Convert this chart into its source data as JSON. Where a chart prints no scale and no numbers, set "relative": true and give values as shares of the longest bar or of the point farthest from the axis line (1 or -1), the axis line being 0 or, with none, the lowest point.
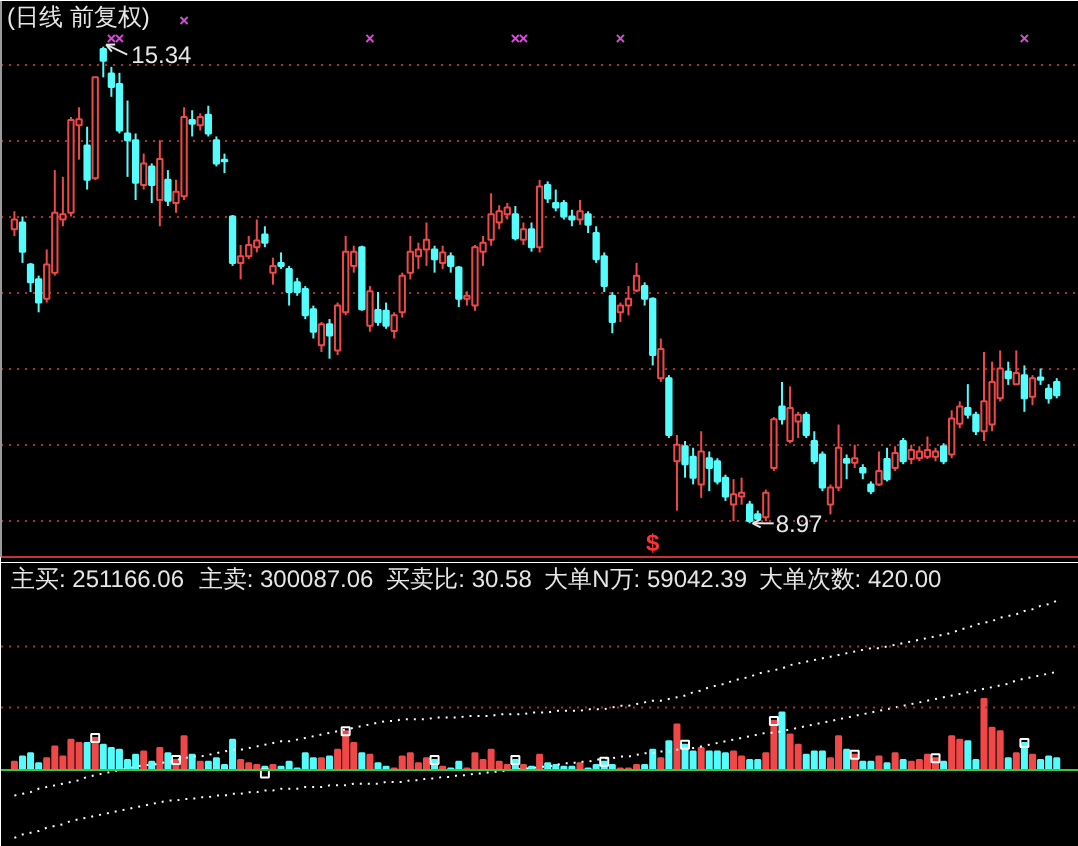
{
  "chart_data": [
    {
      "type": "candlestick",
      "title": "(日线 前复权)",
      "categories": [
        null,
        null,
        null,
        null,
        null,
        null,
        null,
        null,
        null,
        null,
        null,
        null,
        null,
        null,
        null,
        null,
        null,
        null,
        null,
        null,
        null,
        null,
        null,
        null,
        null,
        null,
        null,
        null,
        null,
        null,
        null,
        null,
        null,
        null,
        null,
        null,
        null,
        null,
        null,
        null,
        null,
        null,
        null,
        null,
        null,
        null,
        null,
        null,
        null,
        null,
        null,
        null,
        null,
        null,
        null,
        null,
        null,
        null,
        null,
        null,
        null,
        null,
        null,
        null,
        null,
        null,
        null,
        null,
        null,
        null,
        null,
        null,
        null,
        null,
        null,
        null,
        null,
        null,
        null,
        "$",
        null,
        null,
        null,
        null,
        null,
        null,
        null,
        null,
        null,
        null,
        null,
        null,
        null,
        null,
        null,
        null,
        null,
        null,
        null,
        null,
        null,
        null,
        null,
        null,
        null,
        null,
        null,
        null,
        null,
        null,
        null,
        null,
        null,
        null,
        null,
        null,
        null,
        null,
        null,
        null,
        null,
        null,
        null,
        null,
        null,
        null,
        null,
        null,
        null,
        null
      ],
      "ohlc": [
        [
          12.9,
          13.14,
          12.81,
          13.03
        ],
        [
          12.99,
          13.07,
          12.45,
          12.6
        ],
        [
          12.43,
          12.45,
          12.06,
          12.19
        ],
        [
          12.23,
          12.28,
          11.79,
          11.92
        ],
        [
          11.97,
          12.63,
          11.92,
          12.43
        ],
        [
          12.32,
          13.69,
          12.28,
          13.12
        ],
        [
          13.03,
          13.6,
          12.94,
          13.1
        ],
        [
          13.12,
          14.4,
          13.07,
          14.36
        ],
        [
          14.29,
          14.53,
          13.83,
          14.37
        ],
        [
          14.02,
          14.27,
          13.43,
          13.56
        ],
        [
          13.58,
          14.93,
          13.56,
          14.93
        ],
        [
          15.31,
          15.34,
          14.93,
          15.15
        ],
        [
          14.98,
          15.07,
          14.67,
          14.8
        ],
        [
          14.84,
          14.99,
          14.18,
          14.22
        ],
        [
          14.18,
          14.62,
          13.6,
          14.09
        ],
        [
          14.09,
          14.18,
          13.29,
          13.52
        ],
        [
          13.49,
          13.91,
          13.43,
          13.78
        ],
        [
          13.74,
          13.78,
          13.25,
          13.49
        ],
        [
          13.29,
          14.09,
          12.94,
          13.84
        ],
        [
          13.56,
          13.69,
          13.21,
          13.28
        ],
        [
          13.25,
          13.56,
          13.12,
          13.4
        ],
        [
          13.34,
          14.53,
          13.29,
          14.4
        ],
        [
          14.36,
          14.49,
          14.14,
          14.31
        ],
        [
          14.29,
          14.45,
          14.22,
          14.4
        ],
        [
          14.43,
          14.55,
          14.14,
          14.18
        ],
        [
          14.09,
          14.14,
          13.74,
          13.78
        ],
        [
          13.83,
          13.91,
          13.65,
          13.81
        ],
        [
          13.07,
          13.09,
          12.41,
          12.45
        ],
        [
          12.45,
          12.69,
          12.23,
          12.54
        ],
        [
          12.54,
          12.81,
          12.5,
          12.69
        ],
        [
          12.66,
          13.03,
          12.59,
          12.75
        ],
        [
          12.83,
          12.94,
          12.66,
          12.72
        ],
        [
          12.32,
          12.52,
          12.16,
          12.41
        ],
        [
          12.45,
          12.59,
          12.37,
          12.41
        ],
        [
          12.37,
          12.41,
          11.88,
          12.06
        ],
        [
          12.19,
          12.25,
          12.01,
          12.06
        ],
        [
          12.1,
          12.14,
          11.7,
          11.75
        ],
        [
          11.83,
          11.88,
          11.44,
          11.53
        ],
        [
          11.35,
          11.66,
          11.26,
          11.63
        ],
        [
          11.63,
          11.7,
          11.17,
          11.48
        ],
        [
          11.28,
          11.92,
          11.22,
          11.88
        ],
        [
          11.79,
          12.81,
          11.75,
          12.6
        ],
        [
          12.41,
          12.68,
          12.32,
          12.6
        ],
        [
          12.66,
          12.68,
          11.81,
          11.83
        ],
        [
          11.61,
          12.14,
          11.53,
          12.07
        ],
        [
          11.82,
          12.06,
          11.61,
          11.66
        ],
        [
          11.81,
          11.92,
          11.57,
          11.61
        ],
        [
          11.54,
          11.79,
          11.44,
          11.75
        ],
        [
          11.79,
          12.32,
          11.72,
          12.28
        ],
        [
          12.32,
          12.81,
          12.23,
          12.6
        ],
        [
          12.54,
          12.72,
          12.37,
          12.63
        ],
        [
          12.63,
          12.99,
          12.41,
          12.76
        ],
        [
          12.63,
          12.68,
          12.32,
          12.5
        ],
        [
          12.45,
          12.68,
          12.37,
          12.59
        ],
        [
          12.54,
          12.59,
          12.32,
          12.41
        ],
        [
          12.39,
          12.41,
          11.86,
          11.97
        ],
        [
          11.97,
          12.07,
          11.88,
          12.01
        ],
        [
          11.88,
          12.69,
          11.81,
          12.66
        ],
        [
          12.6,
          12.81,
          12.41,
          12.72
        ],
        [
          12.76,
          13.38,
          12.68,
          13.1
        ],
        [
          12.99,
          13.22,
          12.9,
          13.14
        ],
        [
          13.1,
          13.25,
          13.03,
          13.19
        ],
        [
          13.1,
          13.21,
          12.75,
          12.78
        ],
        [
          12.76,
          12.99,
          12.69,
          12.9
        ],
        [
          12.9,
          12.99,
          12.6,
          12.66
        ],
        [
          12.66,
          13.56,
          12.59,
          13.47
        ],
        [
          13.49,
          13.54,
          13.25,
          13.31
        ],
        [
          13.25,
          13.43,
          13.14,
          13.19
        ],
        [
          13.25,
          13.29,
          13.03,
          13.07
        ],
        [
          13.07,
          13.16,
          12.94,
          13.03
        ],
        [
          13.03,
          13.29,
          12.96,
          13.14
        ],
        [
          13.1,
          13.14,
          12.85,
          12.96
        ],
        [
          12.85,
          12.94,
          12.45,
          12.5
        ],
        [
          12.54,
          12.59,
          12.06,
          12.14
        ],
        [
          12.01,
          12.06,
          11.51,
          11.66
        ],
        [
          11.79,
          11.92,
          11.66,
          11.88
        ],
        [
          11.88,
          12.14,
          11.75,
          11.97
        ],
        [
          12.08,
          12.45,
          12.06,
          12.28
        ],
        [
          12.14,
          12.19,
          11.88,
          11.97
        ],
        [
          11.97,
          11.99,
          11.08,
          11.22
        ],
        [
          10.91,
          11.44,
          10.86,
          11.3
        ],
        [
          10.91,
          10.95,
          10.11,
          10.15
        ],
        [
          9.8,
          10.15,
          9.14,
          10.02
        ],
        [
          10.0,
          10.07,
          9.58,
          9.76
        ],
        [
          9.86,
          9.98,
          9.49,
          9.58
        ],
        [
          9.49,
          10.2,
          9.31,
          9.93
        ],
        [
          9.84,
          9.93,
          9.4,
          9.71
        ],
        [
          9.8,
          9.84,
          9.49,
          9.53
        ],
        [
          9.58,
          9.62,
          9.27,
          9.33
        ],
        [
          9.22,
          9.56,
          9.0,
          9.36
        ],
        [
          9.33,
          9.58,
          9.22,
          9.38
        ],
        [
          9.22,
          9.27,
          8.97,
          9.0
        ],
        [
          9.09,
          9.14,
          9.0,
          9.03
        ],
        [
          9.05,
          9.42,
          9.0,
          9.38
        ],
        [
          9.71,
          10.39,
          9.67,
          10.36
        ],
        [
          10.53,
          10.86,
          10.29,
          10.36
        ],
        [
          10.07,
          10.8,
          10.04,
          10.51
        ],
        [
          10.33,
          10.46,
          10.11,
          10.42
        ],
        [
          10.42,
          10.46,
          10.11,
          10.15
        ],
        [
          10.07,
          10.2,
          9.76,
          9.8
        ],
        [
          9.89,
          9.93,
          9.4,
          9.45
        ],
        [
          9.22,
          9.49,
          9.09,
          9.45
        ],
        [
          9.45,
          10.29,
          9.4,
          9.98
        ],
        [
          9.83,
          9.89,
          9.56,
          9.78
        ],
        [
          9.78,
          10.02,
          9.71,
          9.84
        ],
        [
          9.71,
          9.76,
          9.56,
          9.65
        ],
        [
          9.49,
          9.53,
          9.36,
          9.4
        ],
        [
          9.49,
          9.93,
          9.47,
          9.67
        ],
        [
          9.83,
          9.98,
          9.53,
          9.56
        ],
        [
          9.71,
          10.0,
          9.67,
          9.91
        ],
        [
          10.07,
          10.11,
          9.76,
          9.8
        ],
        [
          9.83,
          10.02,
          9.76,
          9.95
        ],
        [
          9.84,
          10.0,
          9.8,
          9.93
        ],
        [
          9.86,
          10.13,
          9.83,
          9.95
        ],
        [
          9.86,
          9.98,
          9.8,
          9.93
        ],
        [
          10.0,
          10.04,
          9.76,
          9.8
        ],
        [
          9.89,
          10.48,
          9.84,
          10.37
        ],
        [
          10.3,
          10.6,
          10.24,
          10.53
        ],
        [
          10.51,
          10.83,
          10.37,
          10.42
        ],
        [
          10.42,
          10.46,
          10.15,
          10.2
        ],
        [
          10.2,
          11.26,
          10.07,
          10.6
        ],
        [
          10.29,
          11.13,
          10.2,
          10.86
        ],
        [
          10.64,
          11.28,
          10.6,
          11.04
        ],
        [
          11.0,
          11.13,
          10.82,
          10.91
        ],
        [
          10.83,
          11.28,
          10.82,
          10.98
        ],
        [
          10.95,
          11.08,
          10.46,
          10.64
        ],
        [
          10.66,
          10.95,
          10.55,
          10.91
        ],
        [
          10.92,
          11.04,
          10.82,
          10.89
        ],
        [
          10.77,
          10.83,
          10.57,
          10.64
        ],
        [
          10.86,
          10.91,
          10.64,
          10.68
        ]
      ],
      "colors": [
        "#f04848",
        "#54fcfc",
        "#54fcfc",
        "#54fcfc",
        "#f04848",
        "#f04848",
        "#f04848",
        "#f04848",
        "#f04848",
        "#54fcfc",
        "#f04848",
        "#54fcfc",
        "#54fcfc",
        "#54fcfc",
        "#54fcfc",
        "#54fcfc",
        "#f04848",
        "#54fcfc",
        "#f04848",
        "#54fcfc",
        "#f04848",
        "#f04848",
        "#54fcfc",
        "#f04848",
        "#54fcfc",
        "#54fcfc",
        "#54fcfc",
        "#54fcfc",
        "#f04848",
        "#f04848",
        "#f04848",
        "#54fcfc",
        "#f04848",
        "#54fcfc",
        "#54fcfc",
        "#54fcfc",
        "#54fcfc",
        "#54fcfc",
        "#f04848",
        "#54fcfc",
        "#f04848",
        "#f04848",
        "#f04848",
        "#54fcfc",
        "#f04848",
        "#54fcfc",
        "#54fcfc",
        "#f04848",
        "#f04848",
        "#f04848",
        "#f04848",
        "#f04848",
        "#54fcfc",
        "#f04848",
        "#54fcfc",
        "#54fcfc",
        "#f04848",
        "#f04848",
        "#f04848",
        "#f04848",
        "#f04848",
        "#f04848",
        "#54fcfc",
        "#f04848",
        "#54fcfc",
        "#f04848",
        "#54fcfc",
        "#54fcfc",
        "#54fcfc",
        "#54fcfc",
        "#f04848",
        "#54fcfc",
        "#54fcfc",
        "#54fcfc",
        "#54fcfc",
        "#f04848",
        "#f04848",
        "#f04848",
        "#54fcfc",
        "#54fcfc",
        "#f04848",
        "#54fcfc",
        "#f04848",
        "#54fcfc",
        "#54fcfc",
        "#f04848",
        "#54fcfc",
        "#54fcfc",
        "#54fcfc",
        "#f04848",
        "#f04848",
        "#54fcfc",
        "#54fcfc",
        "#f04848",
        "#f04848",
        "#54fcfc",
        "#f04848",
        "#f04848",
        "#54fcfc",
        "#54fcfc",
        "#54fcfc",
        "#f04848",
        "#f04848",
        "#54fcfc",
        "#f04848",
        "#54fcfc",
        "#54fcfc",
        "#f04848",
        "#54fcfc",
        "#f04848",
        "#54fcfc",
        "#f04848",
        "#f04848",
        "#f04848",
        "#f04848",
        "#54fcfc",
        "#f04848",
        "#f04848",
        "#54fcfc",
        "#54fcfc",
        "#f04848",
        "#f04848",
        "#f04848",
        "#54fcfc",
        "#f04848",
        "#54fcfc",
        "#f04848",
        "#54fcfc",
        "#54fcfc",
        "#54fcfc"
      ],
      "ylim": [
        8.52,
        15.95
      ],
      "yticks": [
        {
          "value": 9.0,
          "label": null
        },
        {
          "value": 10.01,
          "label": null
        },
        {
          "value": 11.04,
          "label": null
        },
        {
          "value": 12.05,
          "label": null
        },
        {
          "value": 13.06,
          "label": null
        },
        {
          "value": 14.09,
          "label": null
        },
        {
          "value": 15.1,
          "label": null
        }
      ],
      "grid": "y",
      "tick_labels": "x",
      "annotations": [
        "15.34",
        "8.97"
      ],
      "series": [
        {
          "type": "scatter",
          "color": "#d04ed0",
          "marker": "cross",
          "values": [
            null,
            null,
            null,
            null,
            null,
            null,
            null,
            null,
            null,
            null,
            null,
            null,
            15.45,
            15.45,
            null,
            null,
            null,
            null,
            null,
            null,
            null,
            15.69,
            null,
            null,
            null,
            null,
            null,
            null,
            null,
            null,
            null,
            null,
            null,
            null,
            null,
            null,
            null,
            null,
            null,
            null,
            null,
            null,
            null,
            null,
            15.45,
            null,
            null,
            null,
            null,
            null,
            null,
            null,
            null,
            null,
            null,
            null,
            null,
            null,
            null,
            null,
            null,
            null,
            15.45,
            15.45,
            null,
            null,
            null,
            null,
            null,
            null,
            null,
            null,
            null,
            null,
            null,
            15.45,
            null,
            null,
            null,
            null,
            null,
            null,
            null,
            null,
            null,
            null,
            null,
            null,
            null,
            null,
            null,
            null,
            null,
            null,
            null,
            null,
            null,
            null,
            null,
            null,
            null,
            null,
            null,
            null,
            null,
            null,
            null,
            null,
            null,
            null,
            null,
            null,
            null,
            null,
            null,
            null,
            null,
            null,
            null,
            null,
            null,
            null,
            null,
            null,
            null,
            15.45,
            null,
            null,
            null,
            null
          ]
        }
      ]
    },
    {
      "type": "bar",
      "relative": true,
      "categories": [
        null,
        null,
        null,
        null,
        null,
        null,
        null,
        null,
        null,
        null,
        null,
        null,
        null,
        null,
        null,
        null,
        null,
        null,
        null,
        null,
        null,
        null,
        null,
        null,
        null,
        null,
        null,
        null,
        null,
        null,
        null,
        null,
        null,
        null,
        null,
        null,
        null,
        null,
        null,
        null,
        null,
        null,
        null,
        null,
        null,
        null,
        null,
        null,
        null,
        null,
        null,
        null,
        null,
        null,
        null,
        null,
        null,
        null,
        null,
        null,
        null,
        null,
        null,
        null,
        null,
        null,
        null,
        null,
        null,
        null,
        null,
        null,
        null,
        null,
        null,
        null,
        null,
        null,
        null,
        null,
        null,
        null,
        null,
        null,
        null,
        null,
        null,
        null,
        null,
        null,
        null,
        null,
        null,
        null,
        null,
        null,
        null,
        null,
        null,
        null,
        null,
        null,
        null,
        null,
        null,
        null,
        null,
        null,
        null,
        null,
        null,
        null,
        null,
        null,
        null,
        null,
        null,
        null,
        null,
        null,
        null,
        null,
        null,
        null,
        null,
        null,
        null,
        null,
        null,
        null
      ],
      "annotations": [
        "主买: 251166.06",
        "主卖: 300087.06",
        "买卖比: 30.58",
        "大单N万: 59042.39",
        "大单次数: 420.00"
      ],
      "ref_lines": [
        {
          "axis": "y",
          "value": 0,
          "color": "#3cc83c",
          "line_style": "solid"
        },
        {
          "axis": "y",
          "value": 0.37,
          "color": "#a83030",
          "line_style": "dotted"
        },
        {
          "axis": "y",
          "value": 0.73,
          "color": "#a83030",
          "line_style": "dotted"
        }
      ],
      "series": [
        {
          "colors": [
            "#f04848",
            "#54fcfc",
            "#54fcfc",
            "#54fcfc",
            "#f04848",
            "#f04848",
            "#f04848",
            "#f04848",
            "#f04848",
            "#54fcfc",
            "#f04848",
            "#54fcfc",
            "#54fcfc",
            "#54fcfc",
            "#54fcfc",
            "#54fcfc",
            "#f04848",
            "#54fcfc",
            "#f04848",
            "#54fcfc",
            "#f04848",
            "#f04848",
            "#54fcfc",
            "#f04848",
            "#54fcfc",
            "#54fcfc",
            "#54fcfc",
            "#54fcfc",
            "#f04848",
            "#f04848",
            "#f04848",
            "#54fcfc",
            "#f04848",
            "#54fcfc",
            "#54fcfc",
            "#54fcfc",
            "#54fcfc",
            "#54fcfc",
            "#f04848",
            "#54fcfc",
            "#f04848",
            "#f04848",
            "#f04848",
            "#54fcfc",
            "#f04848",
            "#54fcfc",
            "#54fcfc",
            "#f04848",
            "#f04848",
            "#f04848",
            "#f04848",
            "#f04848",
            "#54fcfc",
            "#f04848",
            "#54fcfc",
            "#54fcfc",
            "#f04848",
            "#f04848",
            "#f04848",
            "#f04848",
            "#f04848",
            "#f04848",
            "#54fcfc",
            "#f04848",
            "#54fcfc",
            "#f04848",
            "#54fcfc",
            "#54fcfc",
            "#54fcfc",
            "#54fcfc",
            "#f04848",
            "#54fcfc",
            "#54fcfc",
            "#54fcfc",
            "#54fcfc",
            "#f04848",
            "#f04848",
            "#f04848",
            "#54fcfc",
            "#54fcfc",
            "#f04848",
            "#54fcfc",
            "#f04848",
            "#54fcfc",
            "#54fcfc",
            "#f04848",
            "#54fcfc",
            "#54fcfc",
            "#54fcfc",
            "#f04848",
            "#f04848",
            "#54fcfc",
            "#54fcfc",
            "#f04848",
            "#f04848",
            "#54fcfc",
            "#f04848",
            "#f04848",
            "#54fcfc",
            "#54fcfc",
            "#54fcfc",
            "#f04848",
            "#f04848",
            "#54fcfc",
            "#f04848",
            "#54fcfc",
            "#54fcfc",
            "#f04848",
            "#54fcfc",
            "#f04848",
            "#54fcfc",
            "#f04848",
            "#f04848",
            "#f04848",
            "#f04848",
            "#54fcfc",
            "#f04848",
            "#f04848",
            "#54fcfc",
            "#54fcfc",
            "#f04848",
            "#f04848",
            "#f04848",
            "#54fcfc",
            "#f04848",
            "#54fcfc",
            "#f04848",
            "#54fcfc",
            "#54fcfc",
            "#54fcfc"
          ],
          "values": [
            0.05,
            0.08,
            0.1,
            0.04,
            0.07,
            0.14,
            0.08,
            0.18,
            0.16,
            0.16,
            0.19,
            0.15,
            0.13,
            0.12,
            0.06,
            0.09,
            0.11,
            0.05,
            0.13,
            0.1,
            0.06,
            0.2,
            0.09,
            0.05,
            0.05,
            0.07,
            0.03,
            0.18,
            0.06,
            0.04,
            0.03,
            0.02,
            0.03,
            0.02,
            0.05,
            0.01,
            0.1,
            0.07,
            0.07,
            0.08,
            0.12,
            0.23,
            0.16,
            0.1,
            0.09,
            0.04,
            0.02,
            0.01,
            0.08,
            0.1,
            0.04,
            0.07,
            0.06,
            0.02,
            0.01,
            0.05,
            0.01,
            0.1,
            0.06,
            0.12,
            0.05,
            0.03,
            0.06,
            0.03,
            0.02,
            0.09,
            0.04,
            0.03,
            0.02,
            0.02,
            0.04,
            0.01,
            0.03,
            0.05,
            0.03,
            0.01,
            0.01,
            0.03,
            0.03,
            0.12,
            0.07,
            0.17,
            0.27,
            0.15,
            0.11,
            0.13,
            0.11,
            0.11,
            0.1,
            0.11,
            0.08,
            0.06,
            0.06,
            0.1,
            0.29,
            0.34,
            0.21,
            0.15,
            0.09,
            0.11,
            0.11,
            0.07,
            0.2,
            0.12,
            0.09,
            0.05,
            0.05,
            0.08,
            0.04,
            0.1,
            0.06,
            0.05,
            0.06,
            0.09,
            0.07,
            0.05,
            0.2,
            0.18,
            0.17,
            0.06,
            0.42,
            0.25,
            0.23,
            0.07,
            0.1,
            0.16,
            0.09,
            0.06,
            0.08,
            0.07
          ]
        },
        {
          "type": "scatter",
          "color": "#ffffff",
          "marker": "square",
          "values": [
            null,
            null,
            null,
            null,
            null,
            null,
            null,
            null,
            null,
            null,
            0.19,
            null,
            null,
            null,
            null,
            null,
            null,
            null,
            null,
            null,
            0.06,
            null,
            null,
            null,
            null,
            null,
            null,
            null,
            null,
            null,
            null,
            -0.02,
            null,
            null,
            null,
            null,
            null,
            null,
            null,
            null,
            null,
            0.23,
            null,
            null,
            null,
            null,
            null,
            null,
            null,
            null,
            null,
            null,
            0.06,
            null,
            null,
            null,
            null,
            null,
            null,
            null,
            null,
            null,
            0.06,
            null,
            null,
            null,
            null,
            null,
            null,
            null,
            null,
            null,
            null,
            0.05,
            null,
            null,
            null,
            null,
            null,
            null,
            null,
            null,
            null,
            0.15,
            null,
            null,
            null,
            null,
            null,
            null,
            null,
            null,
            null,
            null,
            0.29,
            null,
            null,
            null,
            null,
            null,
            null,
            null,
            null,
            null,
            0.09,
            null,
            null,
            null,
            null,
            null,
            null,
            null,
            null,
            null,
            0.07,
            null,
            null,
            null,
            null,
            null,
            null,
            null,
            null,
            null,
            null,
            0.16,
            null,
            null,
            null,
            null
          ]
        },
        {
          "type": "line",
          "color": "#ffffff",
          "line_style": "dotted",
          "values": [
            -0.15,
            -0.14,
            -0.13,
            -0.11,
            -0.1,
            -0.09,
            -0.08,
            -0.07,
            -0.06,
            -0.04,
            -0.03,
            -0.02,
            -0.01,
            0.0,
            0.01,
            0.02,
            0.03,
            0.03,
            0.04,
            0.05,
            0.06,
            0.07,
            0.08,
            0.08,
            0.09,
            0.1,
            0.11,
            0.12,
            0.12,
            0.13,
            0.14,
            0.15,
            0.16,
            0.17,
            0.17,
            0.18,
            0.19,
            0.2,
            0.21,
            0.22,
            0.23,
            0.24,
            0.25,
            0.26,
            0.27,
            0.28,
            0.29,
            0.29,
            0.3,
            0.3,
            0.3,
            0.3,
            0.31,
            0.31,
            0.31,
            0.31,
            0.32,
            0.32,
            0.32,
            0.32,
            0.33,
            0.33,
            0.33,
            0.33,
            0.34,
            0.34,
            0.34,
            0.35,
            0.35,
            0.35,
            0.35,
            0.36,
            0.36,
            0.36,
            0.37,
            0.38,
            0.38,
            0.39,
            0.4,
            0.41,
            0.41,
            0.42,
            0.43,
            0.44,
            0.46,
            0.47,
            0.49,
            0.5,
            0.51,
            0.53,
            0.54,
            0.55,
            0.57,
            0.58,
            0.59,
            0.6,
            0.62,
            0.63,
            0.64,
            0.65,
            0.66,
            0.67,
            0.68,
            0.69,
            0.7,
            0.71,
            0.72,
            0.72,
            0.73,
            0.74,
            0.75,
            0.76,
            0.77,
            0.78,
            0.79,
            0.8,
            0.81,
            0.83,
            0.84,
            0.86,
            0.87,
            0.88,
            0.9,
            0.91,
            0.92,
            0.94,
            0.95,
            0.97,
            0.98,
            1.0
          ]
        },
        {
          "type": "line",
          "color": "#ffffff",
          "line_style": "dotted",
          "values": [
            -0.4,
            -0.38,
            -0.37,
            -0.36,
            -0.34,
            -0.33,
            -0.32,
            -0.3,
            -0.29,
            -0.28,
            -0.27,
            -0.26,
            -0.25,
            -0.24,
            -0.23,
            -0.22,
            -0.21,
            -0.2,
            -0.19,
            -0.18,
            -0.18,
            -0.17,
            -0.17,
            -0.16,
            -0.16,
            -0.15,
            -0.15,
            -0.14,
            -0.14,
            -0.13,
            -0.13,
            -0.12,
            -0.12,
            -0.11,
            -0.11,
            -0.11,
            -0.1,
            -0.1,
            -0.1,
            -0.09,
            -0.09,
            -0.09,
            -0.08,
            -0.08,
            -0.08,
            -0.08,
            -0.07,
            -0.07,
            -0.07,
            -0.06,
            -0.06,
            -0.05,
            -0.05,
            -0.04,
            -0.04,
            -0.03,
            -0.03,
            -0.02,
            -0.02,
            -0.01,
            -0.01,
            0.0,
            0.0,
            0.01,
            0.01,
            0.02,
            0.02,
            0.03,
            0.04,
            0.04,
            0.05,
            0.05,
            0.06,
            0.07,
            0.07,
            0.08,
            0.08,
            0.09,
            0.1,
            0.1,
            0.11,
            0.11,
            0.12,
            0.13,
            0.13,
            0.14,
            0.15,
            0.16,
            0.17,
            0.18,
            0.19,
            0.2,
            0.21,
            0.22,
            0.22,
            0.23,
            0.24,
            0.25,
            0.26,
            0.27,
            0.28,
            0.29,
            0.3,
            0.31,
            0.32,
            0.33,
            0.34,
            0.35,
            0.36,
            0.37,
            0.38,
            0.39,
            0.4,
            0.41,
            0.42,
            0.43,
            0.44,
            0.45,
            0.46,
            0.47,
            0.48,
            0.49,
            0.5,
            0.51,
            0.53,
            0.54,
            0.55,
            0.56,
            0.57,
            0.58
          ]
        }
      ]
    }
  ]
}
